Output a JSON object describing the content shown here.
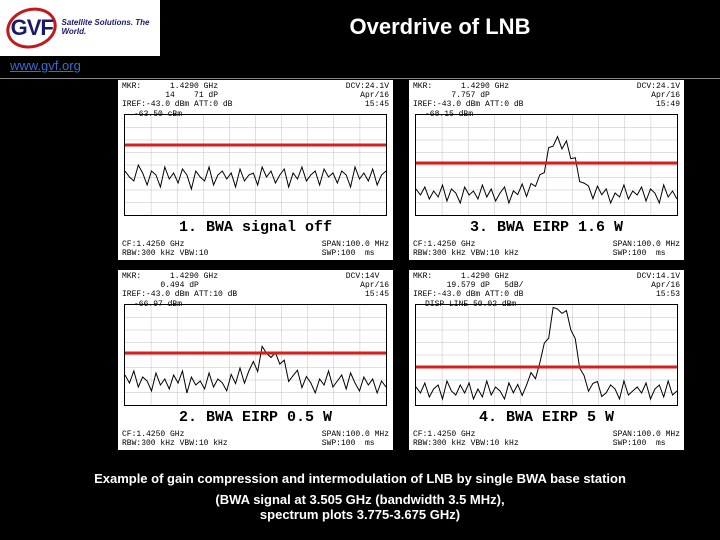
{
  "header": {
    "logo_letters": "GVF",
    "logo_tag": "Satellite\nSolutions.\nThe World.",
    "title": "Overdrive of LNB",
    "url": "www.gvf.org"
  },
  "colors": {
    "background": "#000000",
    "panel_bg": "#ffffff",
    "trace": "#000000",
    "ref_line": "#d81e1e",
    "logo_ring": "#c21a1a",
    "logo_text": "#1a1a6a",
    "link": "#3a6ad4"
  },
  "plot_style": {
    "ref_line_width": 3,
    "trace_width": 1,
    "grid_columns": 10,
    "grid_rows": 8,
    "grid_stroke": "#c0c0c0"
  },
  "panels": [
    {
      "caption": "1. BWA signal off",
      "head_left": "MKR:      1.4290 GHz\n         14    71 dP\nIREF:-43.0 dBm ATT:0 dB",
      "head_right": "DCV:24.1V\n   Apr/16\n    15:45",
      "marker": "-63.50 cBm",
      "foot_l": "CF:1.4250 GHz\nRBW:300 kHz VBW:10",
      "foot_r": "SPAN:100.0 MHz\nSWP:100  ms",
      "ref_y": 0.3,
      "peak_center": 0.0,
      "peak_height": 0.0,
      "series": [
        56,
        62,
        66,
        50,
        58,
        70,
        56,
        60,
        72,
        52,
        64,
        58,
        68,
        54,
        60,
        74,
        56,
        62,
        66,
        52,
        70,
        60,
        56,
        64,
        58,
        72,
        54,
        66,
        60,
        58,
        70,
        52,
        62,
        56,
        68,
        60,
        54,
        72,
        58,
        64,
        52,
        66,
        60,
        56,
        70,
        54,
        62,
        58,
        68,
        56,
        60,
        72,
        52,
        64,
        58,
        66,
        54,
        70,
        60,
        56
      ]
    },
    {
      "caption": "3. BWA EIRP 1.6 W",
      "head_left": "MKR:      1.4290 GHz\n        7.757 dP\nIREF:-43.0 dBm ATT:0 dB",
      "head_right": "DCV:24.1V\n   Apr/16\n    15:49",
      "marker": "-68.15 dBm",
      "foot_l": "CF:1.4250 GHz\nRBW:300 kHz VBW:10 kHz",
      "foot_r": "SPAN:100.0 MHz\nSWP:100  ms",
      "ref_y": 0.48,
      "peak_center": 0.55,
      "peak_height": 0.55,
      "series": [
        74,
        80,
        72,
        84,
        76,
        82,
        70,
        86,
        74,
        78,
        88,
        72,
        80,
        76,
        84,
        70,
        82,
        74,
        86,
        78,
        72,
        88,
        76,
        80,
        70,
        84,
        74,
        82,
        78,
        86,
        72,
        80,
        76,
        88,
        74,
        82,
        70,
        84,
        78,
        76,
        86,
        72,
        80,
        74,
        88,
        78,
        82,
        70,
        84,
        76,
        80,
        72,
        86,
        74,
        78,
        88,
        70,
        82,
        76,
        84
      ]
    },
    {
      "caption": "2. BWA EIRP 0.5 W",
      "head_left": "MKR:      1.4290 GHz\n        0.494 dP\nIREF:-43.0 dBm ATT:10 dB",
      "head_right": "DCV:14V\n   Apr/16\n    15:45",
      "marker": "-66.97 dBm",
      "foot_l": "CF:1.4250 GHz\nRBW:300 kHz VBW:10 kHz",
      "foot_r": "SPAN:100.0 MHz\nSWP:100  ms",
      "ref_y": 0.48,
      "peak_center": 0.55,
      "peak_height": 0.3,
      "series": [
        70,
        78,
        66,
        82,
        72,
        76,
        86,
        68,
        80,
        74,
        84,
        70,
        78,
        66,
        88,
        72,
        80,
        76,
        84,
        68,
        82,
        74,
        78,
        86,
        70,
        80,
        66,
        84,
        76,
        72,
        88,
        68,
        78,
        82,
        74,
        80,
        70,
        86,
        76,
        68,
        84,
        72,
        78,
        88,
        74,
        80,
        66,
        82,
        76,
        70,
        84,
        68,
        78,
        86,
        72,
        80,
        74,
        88,
        76,
        82
      ]
    },
    {
      "caption": "4. BWA EIRP 5 W",
      "head_left": "MKR:      1.4290 GHz\n       19.579 dP   5dB/\nIREF:-43.0 dBm ATT:0 dB",
      "head_right": "DCV:14.1V\n   Apr/16\n    15:53",
      "marker": "DISP LINE\n    50.02 dBm",
      "foot_l": "CF:1.4250 GHz\nRBW:300 kHz VBW:10 kHz",
      "foot_r": "SPAN:100.0 MHz\nSWP:100  ms",
      "ref_y": 0.62,
      "peak_center": 0.55,
      "peak_height": 0.85,
      "series": [
        82,
        88,
        78,
        92,
        84,
        80,
        94,
        76,
        86,
        90,
        80,
        88,
        78,
        94,
        84,
        92,
        76,
        90,
        82,
        86,
        94,
        78,
        88,
        80,
        92,
        84,
        76,
        90,
        86,
        82,
        94,
        78,
        88,
        92,
        80,
        84,
        76,
        90,
        86,
        94,
        82,
        78,
        92,
        88,
        80,
        84,
        94,
        76,
        90,
        86,
        82,
        88,
        78,
        94,
        84,
        80,
        92,
        76,
        90,
        86
      ]
    }
  ],
  "footer": {
    "line1": "Example of gain compression and intermodulation of LNB by single BWA base station",
    "line2": "(BWA signal at 3.505 GHz (bandwidth 3.5 MHz),",
    "line3": "spectrum plots 3.775-3.675 GHz)"
  }
}
